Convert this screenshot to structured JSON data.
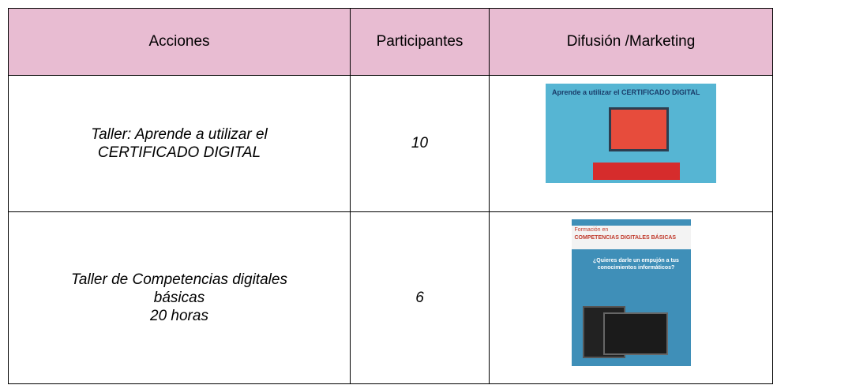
{
  "table": {
    "header": [
      "Acciones",
      "Participantes",
      "Difusión /Marketing"
    ],
    "rows": [
      {
        "accion": [
          "Taller: Aprende a utilizar el",
          "CERTIFICADO DIGITAL"
        ],
        "participantes": "10",
        "poster": {
          "title": "Aprende a utilizar el CERTIFICADO DIGITAL"
        }
      },
      {
        "accion": [
          "Taller de Competencias digitales",
          "básicas",
          "20 horas"
        ],
        "participantes": "6",
        "poster": {
          "kicker": "Formación en",
          "title": "COMPETENCIAS DIGITALES BÁSICAS",
          "question": "¿Quieres darle un empujón a tus conocimientos informáticos?"
        }
      }
    ]
  }
}
